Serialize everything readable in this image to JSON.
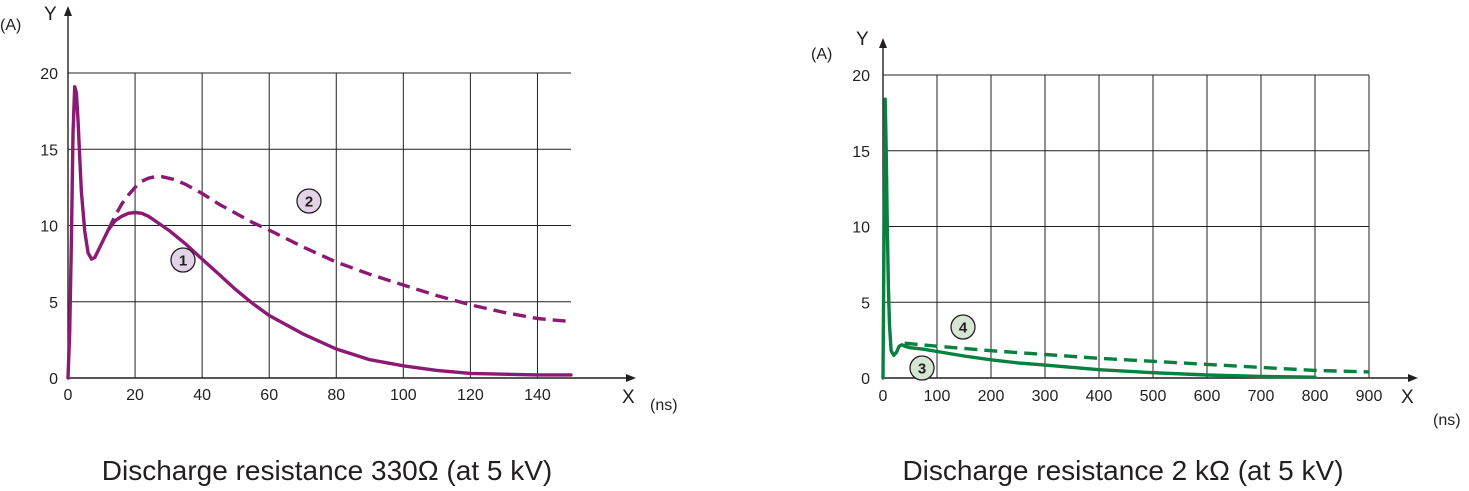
{
  "chart_data": [
    {
      "type": "line",
      "title": "Discharge resistance 330Ω (at 5 kV)",
      "xlabel": "X",
      "xunit": "(ns)",
      "ylabel": "Y",
      "yunit": "(A)",
      "xlim": [
        0,
        150
      ],
      "ylim": [
        0,
        20
      ],
      "xticks": [
        0,
        20,
        40,
        60,
        80,
        100,
        120,
        140
      ],
      "yticks": [
        0,
        5,
        10,
        15,
        20
      ],
      "grid": true,
      "color": "#8b1a75",
      "series": [
        {
          "marker": "1",
          "style": "solid",
          "x": [
            0,
            0.5,
            1,
            1.5,
            2,
            2.5,
            3,
            3.5,
            4,
            5,
            6,
            7,
            8,
            10,
            12,
            14,
            16,
            18,
            20,
            22,
            24,
            26,
            28,
            30,
            35,
            40,
            45,
            50,
            55,
            60,
            70,
            80,
            90,
            100,
            110,
            120,
            130,
            140,
            150
          ],
          "y": [
            0,
            3,
            9,
            16,
            19.1,
            18.7,
            16.8,
            14.5,
            12.2,
            9.6,
            8.2,
            7.8,
            7.9,
            8.8,
            9.7,
            10.3,
            10.6,
            10.8,
            10.85,
            10.8,
            10.6,
            10.3,
            10.0,
            9.7,
            8.8,
            7.8,
            6.8,
            5.8,
            4.9,
            4.1,
            2.9,
            1.9,
            1.2,
            0.8,
            0.5,
            0.3,
            0.25,
            0.2,
            0.2
          ]
        },
        {
          "marker": "2",
          "style": "dashed",
          "x": [
            12,
            14,
            16,
            18,
            20,
            22,
            24,
            26,
            28,
            30,
            32,
            35,
            40,
            45,
            50,
            55,
            60,
            70,
            80,
            90,
            100,
            110,
            120,
            130,
            140,
            150
          ],
          "y": [
            9.7,
            10.6,
            11.4,
            12.0,
            12.5,
            12.9,
            13.1,
            13.2,
            13.2,
            13.1,
            13.0,
            12.7,
            12.1,
            11.4,
            10.8,
            10.2,
            9.7,
            8.6,
            7.6,
            6.8,
            6.1,
            5.4,
            4.8,
            4.3,
            3.9,
            3.7
          ]
        }
      ]
    },
    {
      "type": "line",
      "title": "Discharge resistance 2 kΩ (at 5 kV)",
      "xlabel": "X",
      "xunit": "(ns)",
      "ylabel": "Y",
      "yunit": "(A)",
      "xlim": [
        0,
        900
      ],
      "ylim": [
        0,
        20
      ],
      "xticks": [
        0,
        100,
        200,
        300,
        400,
        500,
        600,
        700,
        800,
        900
      ],
      "yticks": [
        0,
        5,
        10,
        15,
        20
      ],
      "grid": true,
      "color": "#0a8040",
      "series": [
        {
          "marker": "3",
          "style": "solid",
          "x": [
            0,
            2,
            4,
            6,
            8,
            10,
            12,
            15,
            20,
            25,
            30,
            35,
            40,
            50,
            75,
            100,
            150,
            200,
            250,
            300,
            400,
            500,
            600,
            700,
            800
          ],
          "y": [
            0,
            10,
            18.4,
            15,
            10,
            6,
            3.5,
            1.8,
            1.5,
            1.7,
            2.1,
            2.2,
            2.1,
            2.0,
            1.9,
            1.75,
            1.45,
            1.2,
            1.0,
            0.85,
            0.55,
            0.35,
            0.2,
            0.1,
            0.05
          ]
        },
        {
          "marker": "4",
          "style": "dashed",
          "x": [
            40,
            100,
            200,
            300,
            400,
            500,
            600,
            700,
            800,
            900
          ],
          "y": [
            2.3,
            2.1,
            1.8,
            1.55,
            1.3,
            1.1,
            0.9,
            0.7,
            0.5,
            0.4
          ]
        }
      ]
    }
  ]
}
